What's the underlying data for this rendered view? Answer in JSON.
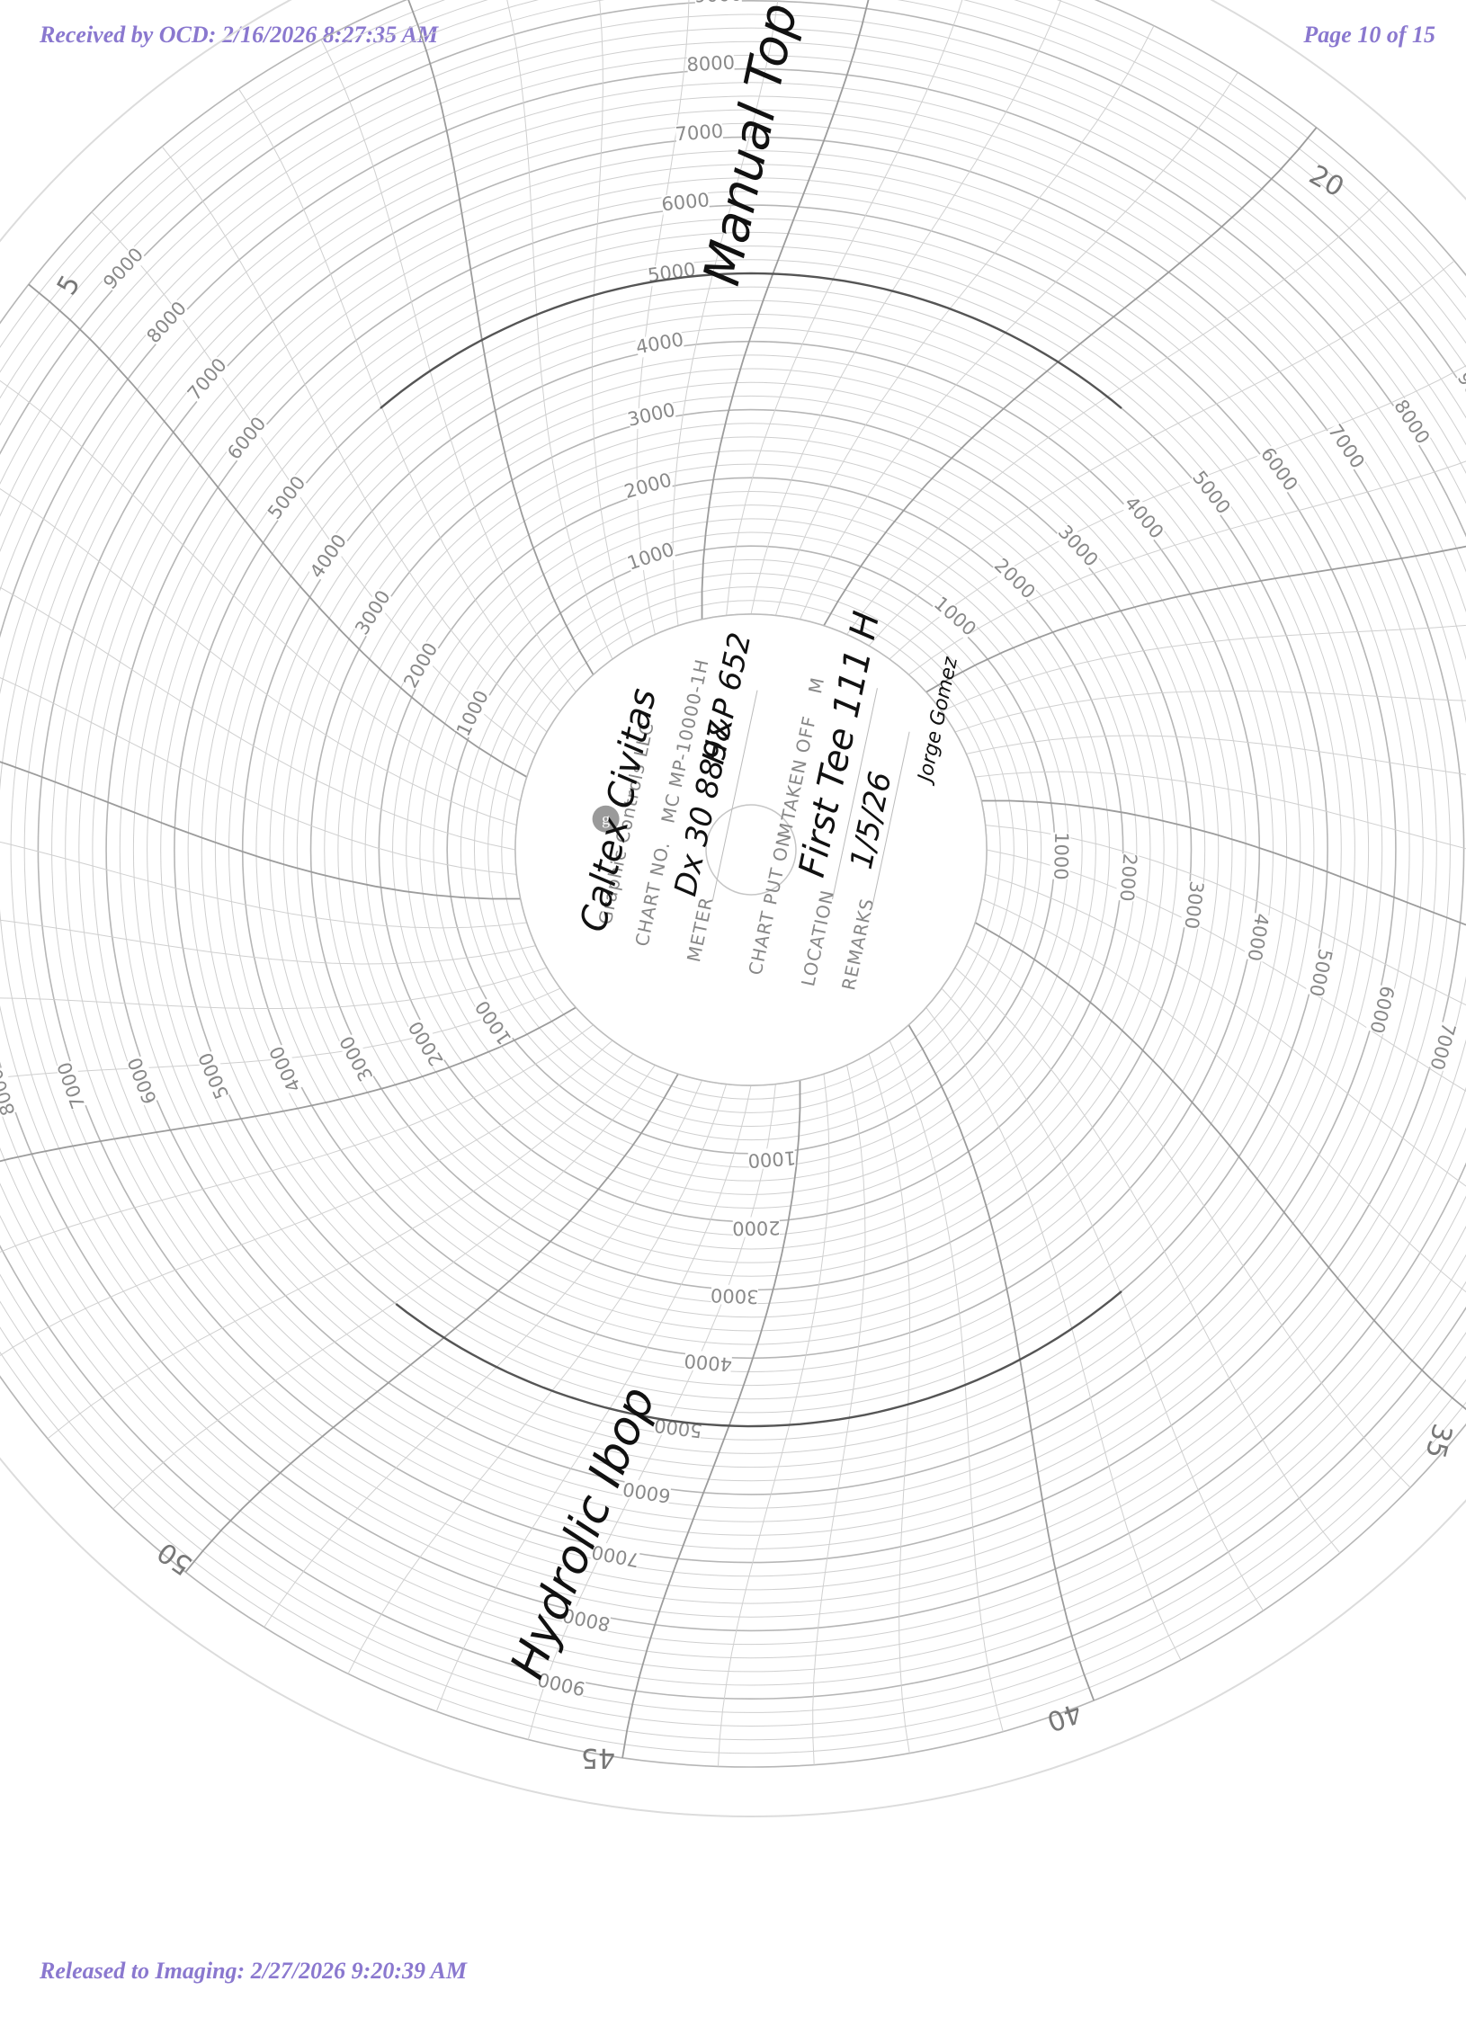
{
  "header": {
    "received": "Received by OCD: 2/16/2026 8:27:35 AM",
    "page": "Page 10 of 15"
  },
  "footer": {
    "released": "Released to Imaging: 2/27/2026 9:20:39 AM"
  },
  "chart": {
    "scale_labels": [
      "1000",
      "2000",
      "3000",
      "4000",
      "5000",
      "6000",
      "7000",
      "8000",
      "9000"
    ],
    "hour_marks": [
      "5",
      "20",
      "35",
      "40",
      "45",
      "50"
    ],
    "manufacturer": "Graphic Controls LLC",
    "logo_letter": "g",
    "chart_no_label": "CHART NO.",
    "chart_no_value": "MC MP-10000-1H",
    "meter_label": "METER",
    "chart_put_on_label": "CHART PUT ON",
    "taken_off_label": "TAKEN OFF",
    "location_label": "LOCATION",
    "remarks_label": "REMARKS",
    "m_mark": "M"
  },
  "handwriting": {
    "company": "Caltex Civitas",
    "meter": "Dx 30 8897",
    "equipment": "H&P 652",
    "location": "First Tee 111 H",
    "date": "1/5/26",
    "signature": "Jorge Gomez",
    "outer_note_1": "Manual Top Drive",
    "outer_note_2": "Hydrolic Ibop"
  },
  "colors": {
    "stamp": "#8a78cf",
    "grid": "#cfcfcf",
    "ink": "#111111"
  }
}
